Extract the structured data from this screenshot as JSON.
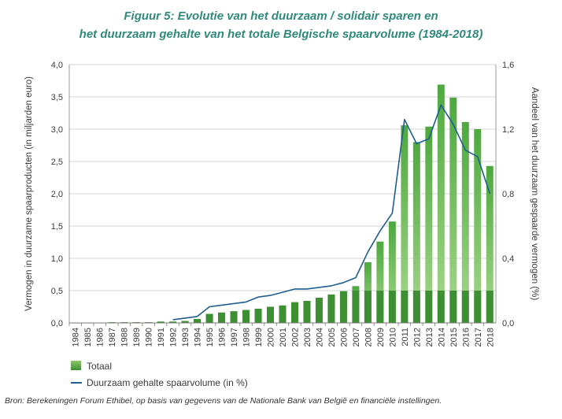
{
  "title_line1": "Figuur 5: Evolutie van het duurzaam / solidair sparen en",
  "title_line2": "het duurzaam gehalte van het totale Belgische spaarvolume (1984-2018)",
  "source": "Bron: Berekeningen Forum Ethibel, op basis van gegevens van de Nationale Bank van België en financiële instellingen.",
  "colors": {
    "bar_light": "#8cc86a",
    "bar_dark": "#3e8e34",
    "line": "#1f5e8e",
    "title": "#2f8a7a"
  },
  "chart_data": {
    "type": "bar",
    "categories": [
      "1984",
      "1985",
      "1986",
      "1987",
      "1988",
      "1989",
      "1990",
      "1991",
      "1992",
      "1993",
      "1994",
      "1995",
      "1996",
      "1997",
      "1998",
      "1999",
      "2000",
      "2001",
      "2002",
      "2003",
      "2004",
      "2005",
      "2006",
      "2007",
      "2008",
      "2009",
      "2010",
      "2011",
      "2012",
      "2013",
      "2014",
      "2015",
      "2016",
      "2017",
      "2018"
    ],
    "series": [
      {
        "name": "Totaal",
        "kind": "bar",
        "axis": "left",
        "values": [
          0,
          0,
          0,
          0.01,
          0.01,
          0.01,
          0.01,
          0.02,
          0.02,
          0.03,
          0.06,
          0.14,
          0.16,
          0.18,
          0.2,
          0.22,
          0.25,
          0.27,
          0.32,
          0.34,
          0.39,
          0.44,
          0.49,
          0.57,
          0.94,
          1.26,
          1.57,
          3.06,
          2.8,
          3.04,
          3.69,
          3.49,
          3.11,
          3.0,
          2.43
        ]
      },
      {
        "name": "Duurzaam gehalte spaarvolume (in %)",
        "kind": "line",
        "axis": "right",
        "values": [
          null,
          null,
          null,
          null,
          null,
          null,
          null,
          null,
          0.02,
          0.03,
          0.04,
          0.1,
          0.11,
          0.12,
          0.13,
          0.16,
          0.17,
          0.19,
          0.21,
          0.21,
          0.22,
          0.23,
          0.25,
          0.28,
          0.44,
          0.57,
          0.68,
          1.26,
          1.11,
          1.14,
          1.35,
          1.23,
          1.07,
          1.03,
          0.8
        ]
      }
    ],
    "ylabel": "Vermogen in duurzame spaarproducten (in miljarden euro)",
    "y2label": "Aandeel van het duurzaam gespaarde vermogen (%)",
    "ylim": [
      0,
      4.0
    ],
    "y2lim": [
      0,
      1.6
    ],
    "yticks": [
      "0,0",
      "0,5",
      "1,0",
      "1,5",
      "2,0",
      "2,5",
      "3,0",
      "3,5",
      "4,0"
    ],
    "y2ticks": [
      "0,0",
      "0,4",
      "0,8",
      "1,2",
      "1,6"
    ],
    "grid": true,
    "legend_position": "bottom-left"
  }
}
